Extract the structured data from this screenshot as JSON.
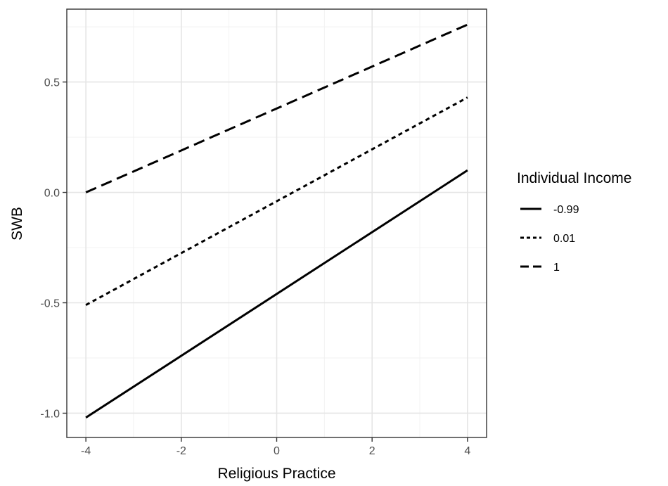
{
  "chart_data": {
    "type": "line",
    "title": "",
    "xlabel": "Religious Practice",
    "ylabel": "SWB",
    "xlim": [
      -4.4,
      4.4
    ],
    "ylim": [
      -1.11,
      0.83
    ],
    "xticks": [
      -4,
      -2,
      0,
      2,
      4
    ],
    "xtick_labels": [
      "-4",
      "-2",
      "0",
      "2",
      "4"
    ],
    "yticks": [
      -1.0,
      -0.5,
      0.0,
      0.5
    ],
    "ytick_labels": [
      "-1.0",
      "-0.5",
      "0.0",
      "0.5"
    ],
    "grid": true,
    "legend": {
      "title": "Individual Income",
      "position": "right"
    },
    "series": [
      {
        "name": "-0.99",
        "style": "solid",
        "x": [
          -4,
          4
        ],
        "y": [
          -1.02,
          0.1
        ],
        "color": "#000000"
      },
      {
        "name": "0.01",
        "style": "dotted",
        "x": [
          -4,
          4
        ],
        "y": [
          -0.51,
          0.43
        ],
        "color": "#000000"
      },
      {
        "name": "1",
        "style": "dashed",
        "x": [
          -4,
          4
        ],
        "y": [
          0.0,
          0.76
        ],
        "color": "#000000"
      }
    ]
  }
}
